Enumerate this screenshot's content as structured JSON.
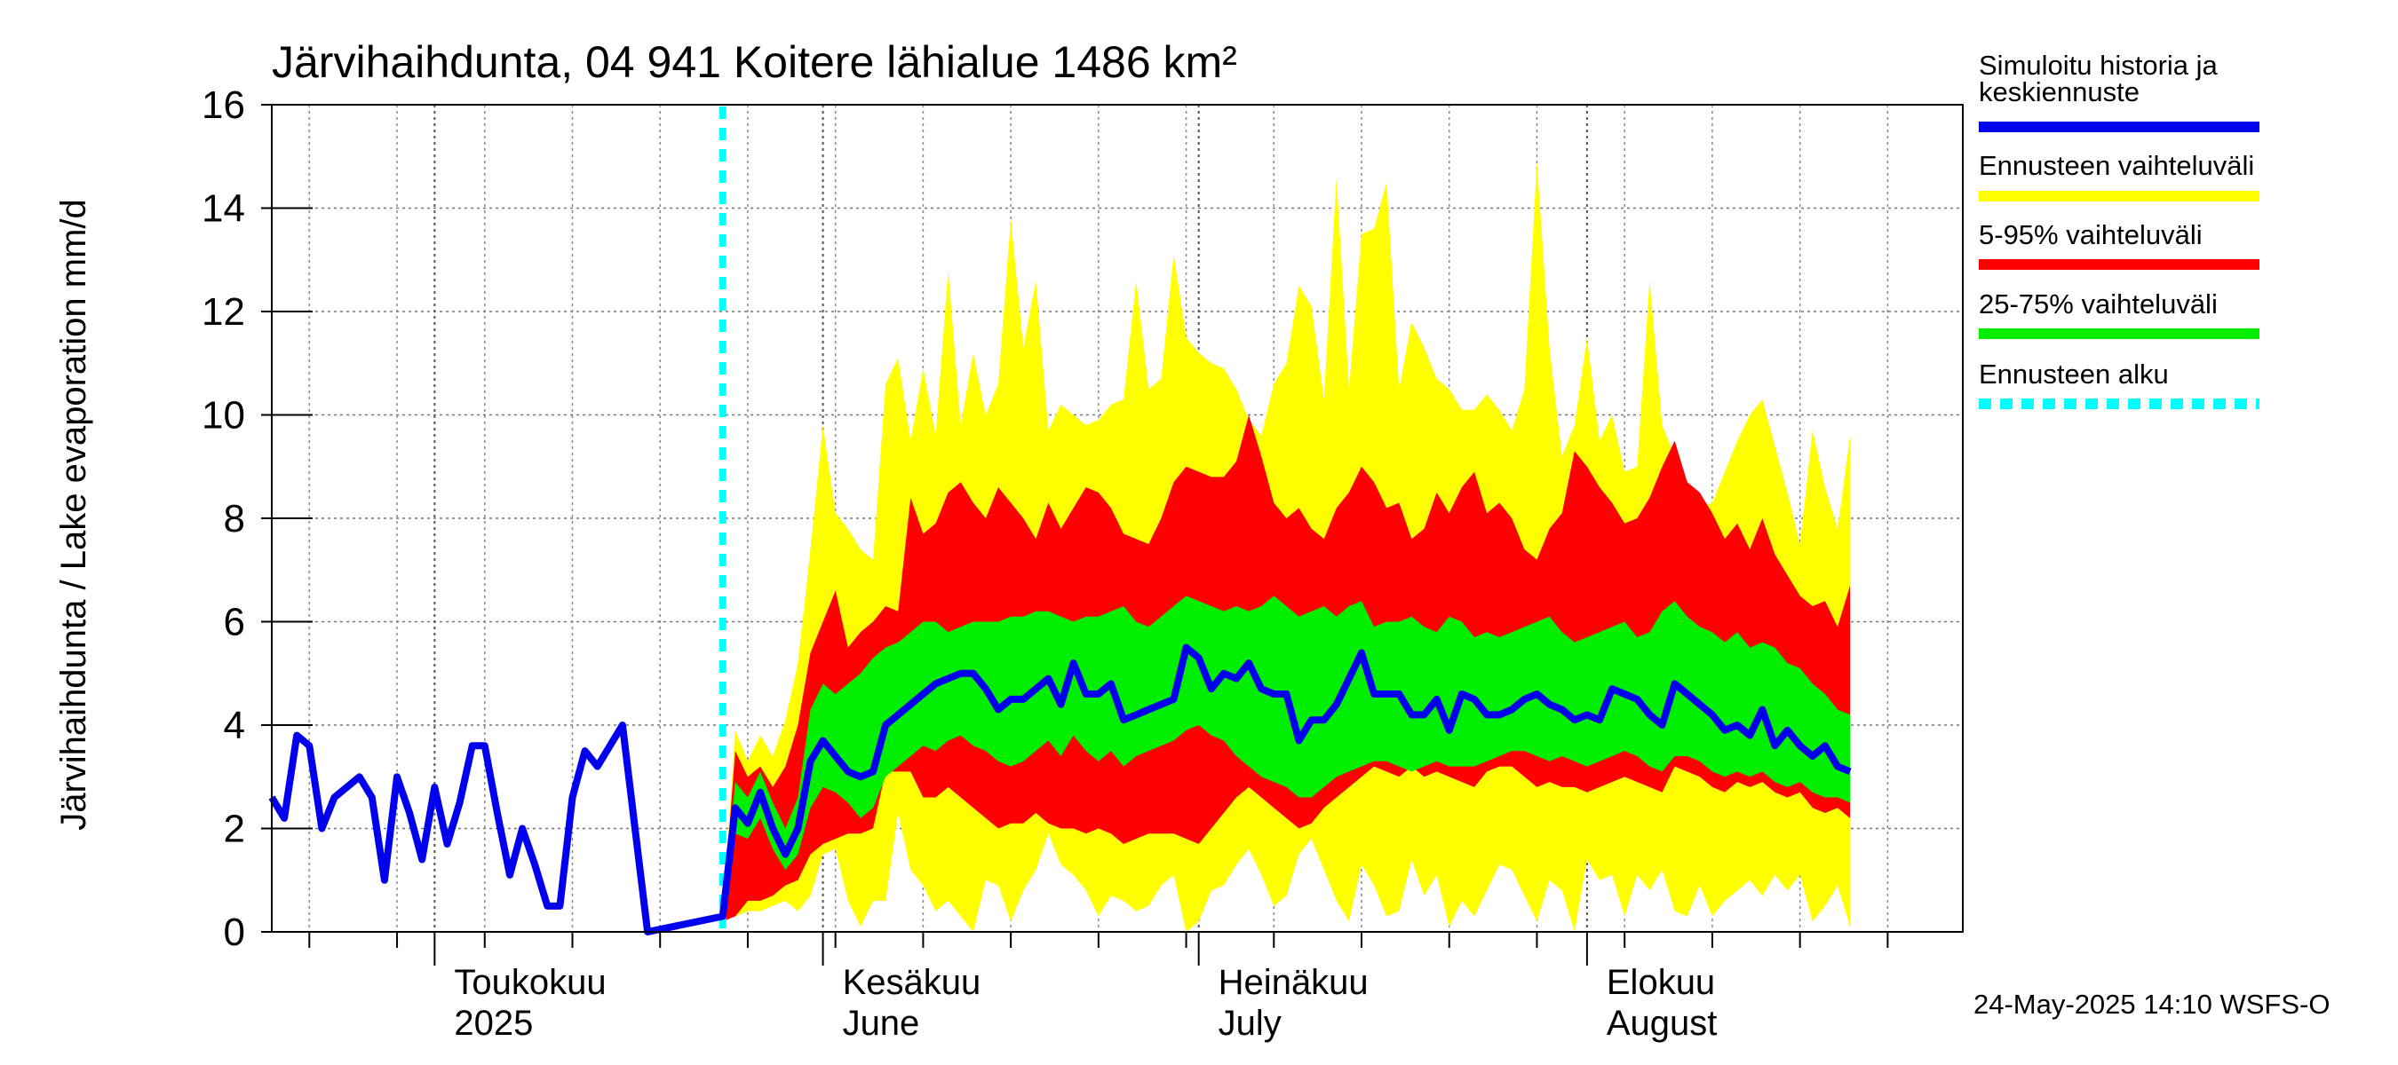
{
  "chart_data": {
    "type": "area",
    "title": "Järvihaihdunta, 04 941 Koitere lähialue 1486 km²",
    "ylabel": "Järvihaihdunta / Lake evaporation   mm/d",
    "ylim": [
      0,
      16
    ],
    "yticks": [
      0,
      2,
      4,
      6,
      8,
      10,
      12,
      14,
      16
    ],
    "grid": true,
    "legend_position": "right",
    "start_date": "2025-04-18",
    "end_date": "2025-08-31",
    "forecast_start": "2025-05-24",
    "month_labels": [
      {
        "date": "2025-05-01",
        "line1": "Toukokuu",
        "line2": "2025"
      },
      {
        "date": "2025-06-01",
        "line1": "Kesäkuu",
        "line2": "June"
      },
      {
        "date": "2025-07-01",
        "line1": "Heinäkuu",
        "line2": "July"
      },
      {
        "date": "2025-08-01",
        "line1": "Elokuu",
        "line2": "August"
      }
    ],
    "legend": [
      {
        "label": "Simuloitu historia ja keskiennuste",
        "lines": [
          "Simuloitu historia ja",
          "keskiennuste"
        ],
        "color": "#0000ee",
        "style": "solid"
      },
      {
        "label": "Ennusteen vaihteluväli",
        "lines": [
          "Ennusteen vaihteluväli"
        ],
        "color": "#ffff00",
        "style": "solid"
      },
      {
        "label": "5-95% vaihteluväli",
        "lines": [
          "5-95% vaihteluväli"
        ],
        "color": "#ff0000",
        "style": "solid"
      },
      {
        "label": "25-75% vaihteluväli",
        "lines": [
          "25-75% vaihteluväli"
        ],
        "color": "#00ee00",
        "style": "solid"
      },
      {
        "label": "Ennusteen alku",
        "lines": [
          "Ennusteen alku"
        ],
        "color": "#00ffff",
        "style": "dashed"
      }
    ],
    "colors": {
      "history": "#0000ee",
      "range": "#ffff00",
      "p5_95": "#ff0000",
      "p25_75": "#00ee00",
      "forecast_start": "#00ffff"
    },
    "history": [
      2.6,
      2.2,
      3.8,
      3.6,
      2.0,
      2.6,
      2.8,
      3.0,
      2.6,
      1.0,
      3.0,
      2.3,
      1.4,
      2.8,
      1.7,
      2.5,
      3.6,
      3.6,
      2.3,
      1.1,
      2.0,
      1.3,
      0.5,
      0.5,
      2.6,
      3.5,
      3.2,
      3.6,
      4.0,
      2.0,
      0.0
    ],
    "series": [
      {
        "name": "Simuloitu historia ja keskiennuste",
        "values": [
          0.3,
          2.4,
          2.1,
          2.7,
          2.0,
          1.5,
          2.0,
          3.3,
          3.7,
          3.4,
          3.1,
          3.0,
          3.1,
          4.0,
          4.2,
          4.4,
          4.6,
          4.8,
          4.9,
          5.0,
          5.0,
          4.7,
          4.3,
          4.5,
          4.5,
          4.7,
          4.9,
          4.4,
          5.2,
          4.6,
          4.6,
          4.8,
          4.1,
          4.2,
          4.3,
          4.4,
          4.5,
          5.5,
          5.3,
          4.7,
          5.0,
          4.9,
          5.2,
          4.7,
          4.6,
          4.6,
          3.7,
          4.1,
          4.1,
          4.4,
          4.9,
          5.4,
          4.6,
          4.6,
          4.6,
          4.2,
          4.2,
          4.5,
          3.9,
          4.6,
          4.5,
          4.2,
          4.2,
          4.3,
          4.5,
          4.6,
          4.4,
          4.3,
          4.1,
          4.2,
          4.1,
          4.7,
          4.6,
          4.5,
          4.2,
          4.0,
          4.8,
          4.6,
          4.4,
          4.2,
          3.9,
          4.0,
          3.8,
          4.3,
          3.6,
          3.9,
          3.6,
          3.4,
          3.6,
          3.2,
          3.1
        ]
      },
      {
        "name": "Ennusteen vaihteluväli (min)",
        "values": [
          0.2,
          0.3,
          0.4,
          0.4,
          0.5,
          0.6,
          0.4,
          0.7,
          1.5,
          1.6,
          0.6,
          0.1,
          0.6,
          0.6,
          2.3,
          1.2,
          0.9,
          0.4,
          0.6,
          0.3,
          0.0,
          1.0,
          0.9,
          0.2,
          0.8,
          1.2,
          1.9,
          1.3,
          1.1,
          0.8,
          0.3,
          0.7,
          0.6,
          0.4,
          0.5,
          0.9,
          1.1,
          0.0,
          0.2,
          0.8,
          0.9,
          1.3,
          1.6,
          1.1,
          0.5,
          0.7,
          1.5,
          1.8,
          1.2,
          0.6,
          0.2,
          1.3,
          0.9,
          0.3,
          0.4,
          1.4,
          0.7,
          1.1,
          0.1,
          0.6,
          0.3,
          0.8,
          1.3,
          1.2,
          0.7,
          0.2,
          1.0,
          0.8,
          0.0,
          1.4,
          1.0,
          1.1,
          0.3,
          1.1,
          0.8,
          1.2,
          0.4,
          0.3,
          0.9,
          0.3,
          0.6,
          0.8,
          1.0,
          0.7,
          1.1,
          0.8,
          1.1,
          0.2,
          0.5,
          0.9,
          0.1
        ]
      },
      {
        "name": "5% vaihteluväli",
        "values": [
          0.2,
          0.3,
          0.6,
          0.6,
          0.7,
          0.9,
          1.0,
          1.5,
          1.7,
          1.8,
          1.9,
          1.9,
          2.0,
          3.1,
          3.1,
          3.1,
          2.6,
          2.6,
          2.8,
          2.6,
          2.4,
          2.2,
          2.0,
          2.1,
          2.1,
          2.3,
          2.1,
          2.0,
          2.0,
          1.9,
          2.0,
          1.9,
          1.7,
          1.8,
          1.9,
          1.9,
          1.9,
          1.8,
          1.7,
          2.0,
          2.3,
          2.6,
          2.8,
          2.6,
          2.4,
          2.2,
          2.0,
          2.1,
          2.4,
          2.6,
          2.8,
          3.0,
          3.2,
          3.1,
          3.0,
          3.2,
          3.0,
          3.1,
          3.0,
          2.9,
          2.8,
          3.1,
          3.2,
          3.2,
          3.0,
          2.8,
          2.9,
          2.8,
          2.8,
          2.7,
          2.8,
          2.9,
          3.0,
          2.9,
          2.8,
          2.7,
          3.2,
          3.1,
          3.0,
          2.8,
          2.7,
          2.9,
          2.8,
          2.9,
          2.7,
          2.6,
          2.7,
          2.4,
          2.3,
          2.4,
          2.2
        ]
      },
      {
        "name": "25% vaihteluväli",
        "values": [
          0.3,
          1.9,
          1.8,
          2.2,
          1.6,
          1.2,
          1.5,
          2.4,
          2.8,
          2.7,
          2.5,
          2.2,
          2.4,
          3.0,
          3.2,
          3.4,
          3.6,
          3.5,
          3.7,
          3.8,
          3.6,
          3.5,
          3.3,
          3.2,
          3.3,
          3.5,
          3.7,
          3.4,
          3.8,
          3.5,
          3.3,
          3.5,
          3.2,
          3.4,
          3.5,
          3.6,
          3.7,
          3.9,
          4.0,
          3.8,
          3.7,
          3.4,
          3.2,
          3.0,
          2.9,
          2.8,
          2.6,
          2.6,
          2.8,
          3.0,
          3.1,
          3.2,
          3.3,
          3.3,
          3.2,
          3.1,
          3.2,
          3.3,
          3.2,
          3.2,
          3.2,
          3.3,
          3.4,
          3.5,
          3.5,
          3.4,
          3.3,
          3.4,
          3.3,
          3.2,
          3.3,
          3.4,
          3.5,
          3.4,
          3.2,
          3.1,
          3.4,
          3.4,
          3.3,
          3.1,
          3.0,
          3.1,
          3.0,
          3.1,
          2.9,
          2.8,
          2.9,
          2.7,
          2.6,
          2.6,
          2.5
        ]
      },
      {
        "name": "75% vaihteluväli",
        "values": [
          0.3,
          2.9,
          2.6,
          3.1,
          2.5,
          2.0,
          2.6,
          4.3,
          4.8,
          4.6,
          4.8,
          5.0,
          5.3,
          5.5,
          5.6,
          5.8,
          6.0,
          6.0,
          5.8,
          5.9,
          6.0,
          6.0,
          6.0,
          6.1,
          6.1,
          6.2,
          6.2,
          6.1,
          6.0,
          6.1,
          6.1,
          6.2,
          6.3,
          6.0,
          5.9,
          6.1,
          6.3,
          6.5,
          6.4,
          6.3,
          6.2,
          6.3,
          6.2,
          6.3,
          6.5,
          6.3,
          6.1,
          6.2,
          6.3,
          6.1,
          6.3,
          6.4,
          5.9,
          6.0,
          6.0,
          6.1,
          5.9,
          5.8,
          6.1,
          6.0,
          5.7,
          5.8,
          5.7,
          5.8,
          5.9,
          6.0,
          6.1,
          5.8,
          5.6,
          5.7,
          5.8,
          5.9,
          6.0,
          5.7,
          5.8,
          6.2,
          6.4,
          6.1,
          5.9,
          5.8,
          5.6,
          5.8,
          5.5,
          5.6,
          5.5,
          5.2,
          5.1,
          4.8,
          4.6,
          4.3,
          4.2
        ]
      },
      {
        "name": "95% vaihteluväli",
        "values": [
          0.3,
          3.5,
          3.0,
          3.2,
          2.8,
          3.2,
          4.0,
          5.4,
          6.0,
          6.6,
          5.5,
          5.8,
          6.0,
          6.3,
          6.2,
          8.4,
          7.7,
          7.9,
          8.5,
          8.7,
          8.3,
          8.0,
          8.6,
          8.3,
          8.0,
          7.6,
          8.3,
          7.8,
          8.2,
          8.6,
          8.5,
          8.2,
          7.7,
          7.6,
          7.5,
          8.0,
          8.7,
          9.0,
          8.9,
          8.8,
          8.8,
          9.1,
          10.0,
          9.2,
          8.3,
          8.0,
          8.2,
          7.8,
          7.6,
          8.2,
          8.5,
          9.0,
          8.7,
          8.2,
          8.3,
          7.6,
          7.8,
          8.5,
          8.1,
          8.6,
          8.9,
          8.1,
          8.3,
          8.0,
          7.4,
          7.2,
          7.8,
          8.1,
          9.3,
          9.0,
          8.6,
          8.3,
          7.9,
          8.0,
          8.4,
          9.0,
          9.5,
          8.7,
          8.5,
          8.1,
          7.6,
          7.9,
          7.4,
          8.0,
          7.3,
          6.9,
          6.5,
          6.3,
          6.4,
          5.9,
          6.7
        ]
      },
      {
        "name": "Ennusteen vaihteluväli (max)",
        "values": [
          0.3,
          3.9,
          3.3,
          3.8,
          3.4,
          4.1,
          5.2,
          7.4,
          9.8,
          8.1,
          7.8,
          7.4,
          7.2,
          10.6,
          11.1,
          9.5,
          10.9,
          9.6,
          12.8,
          9.8,
          11.2,
          10.0,
          10.6,
          13.8,
          11.3,
          12.6,
          9.7,
          10.2,
          10.0,
          9.8,
          9.9,
          10.2,
          10.3,
          12.6,
          10.5,
          10.7,
          13.1,
          11.5,
          11.2,
          11.0,
          10.9,
          10.5,
          9.9,
          9.6,
          10.6,
          11.0,
          12.5,
          12.1,
          10.3,
          14.6,
          10.5,
          13.5,
          13.6,
          14.5,
          10.5,
          11.8,
          11.3,
          10.7,
          10.5,
          10.1,
          10.1,
          10.4,
          10.1,
          9.7,
          10.5,
          14.9,
          11.3,
          9.2,
          9.8,
          11.5,
          9.5,
          10.0,
          8.9,
          9.0,
          12.6,
          9.8,
          9.2,
          8.4,
          8.2,
          8.3,
          8.9,
          9.5,
          10.0,
          10.3,
          9.4,
          8.5,
          7.5,
          9.7,
          8.6,
          7.8,
          9.6
        ]
      }
    ]
  },
  "footer": {
    "timestamp": "24-May-2025 14:10 WSFS-O"
  }
}
